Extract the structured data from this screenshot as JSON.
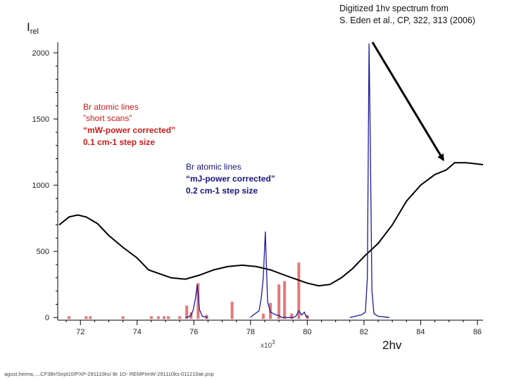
{
  "credit": {
    "line1": "Digitized 1hv spectrum from",
    "line2": "S. Eden et al., CP, 322, 313 (2006)"
  },
  "annotation_short": {
    "line1": "Br atomic lines",
    "line2": "”short scans”",
    "line3": "“mW-power corrected”",
    "line4": "0.1 cm-1 step size"
  },
  "annotation_mj": {
    "line1": "Br atomic lines",
    "line2": "“mJ-power corrected”",
    "line3": "0.2 cm-1 step size"
  },
  "footer": "agust,heima,....CF3Br/Sept10/PXP-291110ks/ Br 1D- REMPImW-291110ks-011210ak.pxp",
  "chart_data": {
    "type": "line",
    "ylabel_main": "I",
    "ylabel_sub": "rel",
    "xlabel": "2hv",
    "x_scale_label": "x10",
    "x_scale_exp": "3",
    "xlim": [
      71.2,
      86.2
    ],
    "ylim": [
      -20,
      2080
    ],
    "x_ticks": [
      72,
      74,
      76,
      78,
      80,
      82,
      84,
      86
    ],
    "y_ticks": [
      0,
      500,
      1000,
      1500,
      2000
    ],
    "colors": {
      "black_curve": "#000000",
      "red_lines": "#e87878",
      "blue_trace": "#1a1aa0",
      "arrow": "#000000"
    },
    "series": [
      {
        "x": [
          71.25,
          71.6,
          71.9,
          72.2,
          72.6,
          73.0,
          73.5,
          74.0,
          74.4,
          74.8,
          75.2,
          75.7,
          76.2,
          76.7,
          77.2,
          77.7,
          78.2,
          78.7,
          79.2,
          79.6,
          80.0,
          80.4,
          80.8,
          81.2,
          81.6,
          82.0,
          82.5,
          83.0,
          83.5,
          84.0,
          84.5,
          84.9,
          85.2,
          85.6,
          86.0,
          86.2
        ],
        "y": [
          700,
          760,
          775,
          760,
          710,
          620,
          530,
          450,
          360,
          330,
          300,
          290,
          320,
          360,
          385,
          395,
          385,
          360,
          320,
          290,
          260,
          240,
          250,
          300,
          370,
          460,
          560,
          700,
          880,
          1000,
          1080,
          1115,
          1170,
          1170,
          1160,
          1155
        ]
      },
      {
        "x": [
          71.6,
          72.2,
          72.35,
          73.5,
          74.5,
          74.75,
          74.95,
          75.1,
          75.5,
          75.75,
          75.9,
          76.15,
          76.45,
          77.35,
          78.45,
          78.7,
          79.0,
          79.2,
          79.45,
          79.7,
          80.0
        ],
        "y": [
          10,
          10,
          10,
          10,
          10,
          10,
          10,
          10,
          10,
          90,
          40,
          260,
          20,
          120,
          30,
          110,
          250,
          275,
          30,
          415,
          20
        ]
      },
      {
        "x": [
          75.7,
          75.8,
          75.9,
          75.98,
          76.06,
          76.12,
          76.2,
          76.3,
          76.5,
          78.0,
          78.1,
          78.3,
          78.38,
          78.45,
          78.52,
          78.6,
          78.7,
          78.8,
          78.9,
          79.0,
          79.1,
          79.5,
          79.6,
          79.7,
          79.8,
          79.9,
          79.95,
          80.05,
          81.5,
          81.7,
          81.9,
          82.05,
          82.12,
          82.18,
          82.22,
          82.28,
          82.35,
          82.5,
          82.7,
          82.9
        ],
        "y": [
          0,
          5,
          15,
          60,
          150,
          250,
          60,
          10,
          0,
          0,
          20,
          50,
          150,
          300,
          650,
          120,
          40,
          30,
          20,
          15,
          0,
          0,
          10,
          50,
          20,
          40,
          10,
          0,
          0,
          10,
          20,
          40,
          300,
          2070,
          1400,
          200,
          30,
          10,
          5,
          0
        ]
      }
    ],
    "arrow": {
      "from": [
        82.3,
        2080
      ],
      "to": [
        84.8,
        1190
      ]
    }
  }
}
